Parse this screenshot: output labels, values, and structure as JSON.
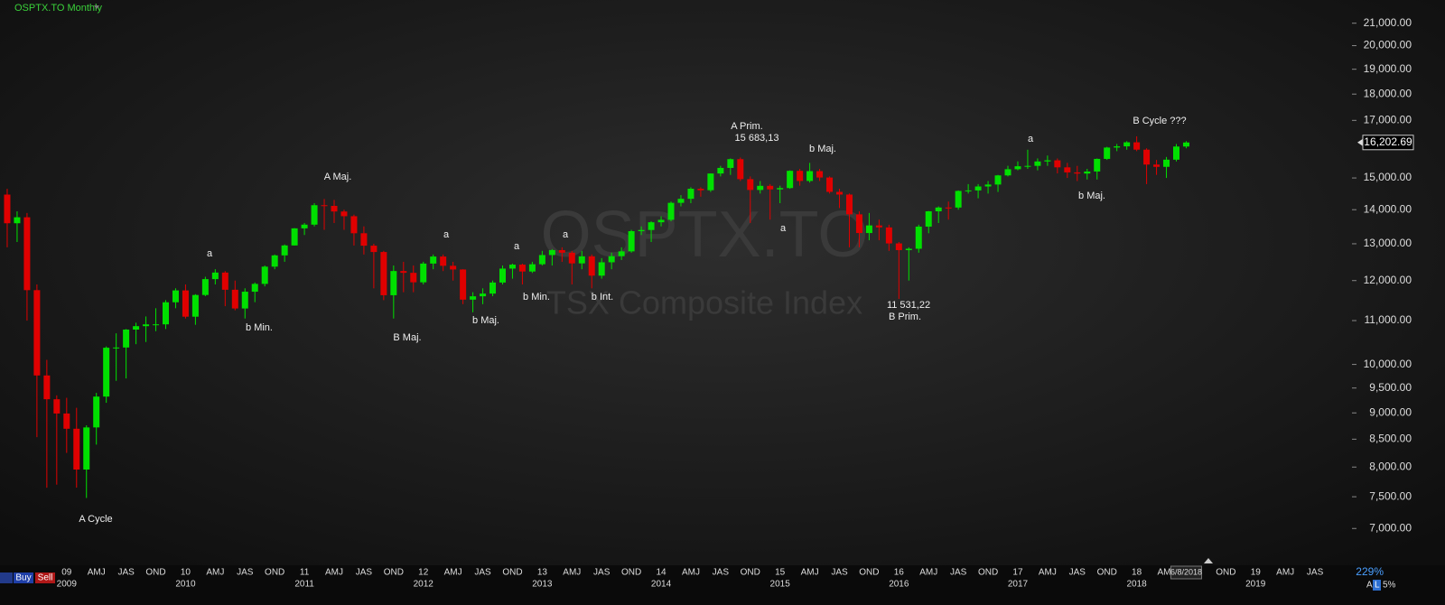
{
  "chart_data": {
    "type": "candlestick",
    "title": "OSPTX.TO Monthly",
    "watermark": "OSPTX.TO",
    "watermark_subtitle": "TSX Composite Index",
    "log_scale": true,
    "up_color": "#00e000",
    "down_color": "#e00000",
    "x": [
      "2008-07",
      "2008-08",
      "2008-09",
      "2008-10",
      "2008-11",
      "2008-12",
      "2009-01",
      "2009-02",
      "2009-03",
      "2009-04",
      "2009-05",
      "2009-06",
      "2009-07",
      "2009-08",
      "2009-09",
      "2009-10",
      "2009-11",
      "2009-12",
      "2010-01",
      "2010-02",
      "2010-03",
      "2010-04",
      "2010-05",
      "2010-06",
      "2010-07",
      "2010-08",
      "2010-09",
      "2010-10",
      "2010-11",
      "2010-12",
      "2011-01",
      "2011-02",
      "2011-03",
      "2011-04",
      "2011-05",
      "2011-06",
      "2011-07",
      "2011-08",
      "2011-09",
      "2011-10",
      "2011-11",
      "2011-12",
      "2012-01",
      "2012-02",
      "2012-03",
      "2012-04",
      "2012-05",
      "2012-06",
      "2012-07",
      "2012-08",
      "2012-09",
      "2012-10",
      "2012-11",
      "2012-12",
      "2013-01",
      "2013-02",
      "2013-03",
      "2013-04",
      "2013-05",
      "2013-06",
      "2013-07",
      "2013-08",
      "2013-09",
      "2013-10",
      "2013-11",
      "2013-12",
      "2014-01",
      "2014-02",
      "2014-03",
      "2014-04",
      "2014-05",
      "2014-06",
      "2014-07",
      "2014-08",
      "2014-09",
      "2014-10",
      "2014-11",
      "2014-12",
      "2015-01",
      "2015-02",
      "2015-03",
      "2015-04",
      "2015-05",
      "2015-06",
      "2015-07",
      "2015-08",
      "2015-09",
      "2015-10",
      "2015-11",
      "2015-12",
      "2016-01",
      "2016-02",
      "2016-03",
      "2016-04",
      "2016-05",
      "2016-06",
      "2016-07",
      "2016-08",
      "2016-09",
      "2016-10",
      "2016-11",
      "2016-12",
      "2017-01",
      "2017-02",
      "2017-03",
      "2017-04",
      "2017-05",
      "2017-06",
      "2017-07",
      "2017-08",
      "2017-09",
      "2017-10",
      "2017-11",
      "2017-12",
      "2018-01",
      "2018-02",
      "2018-03",
      "2018-04",
      "2018-05",
      "2018-06"
    ],
    "open": [
      14467,
      13593,
      13771,
      11753,
      9763,
      9271,
      8988,
      8695,
      7957,
      8720,
      9325,
      10370,
      10375,
      10787,
      10868,
      10910,
      10911,
      11447,
      11746,
      11094,
      11630,
      12038,
      12211,
      11763,
      11294,
      11713,
      11914,
      12369,
      12676,
      12953,
      13443,
      13552,
      14137,
      14116,
      13945,
      13803,
      13301,
      12946,
      12769,
      11624,
      12252,
      12204,
      11955,
      12452,
      12644,
      12392,
      12293,
      11513,
      11597,
      11665,
      11949,
      12317,
      12423,
      12239,
      12434,
      12685,
      12822,
      12750,
      12457,
      12650,
      12129,
      12487,
      12654,
      12787,
      13361,
      13395,
      13622,
      13695,
      14210,
      14335,
      14652,
      14604,
      15146,
      15331,
      15626,
      14961,
      14613,
      14745,
      14632,
      14674,
      15234,
      14902,
      15225,
      15014,
      14553,
      14468,
      13859,
      13307,
      13529,
      13470,
      13010,
      12822,
      12860,
      13494,
      13951,
      14066,
      14065,
      14583,
      14598,
      14725,
      14787,
      15083,
      15288,
      15386,
      15399,
      15548,
      15586,
      15350,
      15182,
      15144,
      15212,
      15635,
      16025,
      16067,
      16209,
      15952,
      15443,
      15367,
      15608,
      16061
    ],
    "high": [
      14650,
      13950,
      13900,
      11900,
      10100,
      9350,
      9300,
      9100,
      8760,
      9400,
      10400,
      10700,
      10800,
      10950,
      11100,
      11300,
      11500,
      11800,
      11900,
      11650,
      12100,
      12300,
      12250,
      12000,
      11800,
      11950,
      12400,
      12700,
      12980,
      13450,
      13600,
      14200,
      14329,
      14300,
      14000,
      13850,
      13500,
      13000,
      12800,
      12400,
      12500,
      12400,
      12500,
      12700,
      12700,
      12500,
      12300,
      11700,
      11800,
      12000,
      12400,
      12450,
      12450,
      12500,
      12800,
      12850,
      12900,
      12800,
      12800,
      12700,
      12600,
      12750,
      12900,
      13400,
      13500,
      13650,
      13800,
      14250,
      14450,
      14700,
      14700,
      15150,
      15400,
      15650,
      15683.13,
      15050,
      14900,
      14800,
      14750,
      15250,
      15300,
      15500,
      15300,
      15050,
      14650,
      14500,
      13950,
      13900,
      13700,
      13550,
      13050,
      12900,
      13550,
      13960,
      14100,
      14250,
      14600,
      14800,
      14800,
      14900,
      15100,
      15400,
      15550,
      15950,
      15650,
      15750,
      15650,
      15500,
      15400,
      15300,
      15650,
      16050,
      16150,
      16250,
      16421,
      16000,
      15600,
      15700,
      16150,
      16250
    ],
    "low": [
      12900,
      13050,
      11000,
      8537,
      7648,
      7700,
      8250,
      7650,
      7480,
      8400,
      9200,
      9650,
      9700,
      10450,
      10500,
      10750,
      10800,
      11300,
      11050,
      10900,
      11600,
      11900,
      11350,
      11250,
      11050,
      11450,
      11850,
      12300,
      12500,
      12950,
      13250,
      13500,
      13400,
      13600,
      13400,
      12950,
      12700,
      11800,
      11500,
      11050,
      11700,
      11700,
      11900,
      12300,
      12250,
      12000,
      11400,
      11200,
      11400,
      11600,
      11900,
      12050,
      11900,
      12200,
      12400,
      12400,
      12500,
      11900,
      12300,
      11800,
      12050,
      12300,
      12550,
      12750,
      13250,
      13050,
      13500,
      13650,
      14100,
      14200,
      14400,
      14550,
      15050,
      15100,
      14900,
      13600,
      14500,
      13700,
      14200,
      14650,
      14750,
      14850,
      14900,
      14500,
      14050,
      12900,
      12900,
      13100,
      13100,
      12800,
      11531.22,
      12000,
      12750,
      13300,
      13600,
      13700,
      14000,
      14500,
      14350,
      14500,
      14550,
      15050,
      15250,
      15300,
      15250,
      15400,
      15150,
      15000,
      14900,
      14950,
      14950,
      15600,
      15900,
      15950,
      15900,
      14800,
      15100,
      15000,
      15550,
      16000
    ],
    "close": [
      13593,
      13771,
      11753,
      9763,
      9271,
      8988,
      8695,
      7957,
      8720,
      9325,
      10370,
      10375,
      10787,
      10868,
      10910,
      10911,
      11447,
      11746,
      11094,
      11630,
      12038,
      12211,
      11763,
      11294,
      11713,
      11914,
      12369,
      12676,
      12953,
      13443,
      13552,
      14137,
      14116,
      13945,
      13803,
      13301,
      12946,
      12769,
      11624,
      12252,
      12204,
      11955,
      12452,
      12644,
      12392,
      12293,
      11513,
      11597,
      11665,
      11949,
      12317,
      12423,
      12239,
      12434,
      12685,
      12822,
      12750,
      12457,
      12650,
      12129,
      12487,
      12654,
      12787,
      13361,
      13395,
      13622,
      13695,
      14210,
      14335,
      14652,
      14604,
      15146,
      15331,
      15626,
      14961,
      14613,
      14745,
      14632,
      14674,
      15234,
      14902,
      15225,
      15014,
      14553,
      14468,
      13859,
      13307,
      13529,
      13470,
      13010,
      12822,
      12860,
      13494,
      13951,
      14066,
      14065,
      14583,
      14598,
      14725,
      14787,
      15083,
      15288,
      15386,
      15399,
      15548,
      15586,
      15350,
      15182,
      15144,
      15212,
      15635,
      16025,
      16067,
      16209,
      15952,
      15443,
      15367,
      15608,
      16061,
      16202.69
    ],
    "xlim": [
      "2008-06",
      "2019-10"
    ],
    "ylim": [
      6500,
      22000
    ],
    "yticks": [
      {
        "value": 7000,
        "label": "7,000.00"
      },
      {
        "value": 7500,
        "label": "7,500.00"
      },
      {
        "value": 8000,
        "label": "8,000.00"
      },
      {
        "value": 8500,
        "label": "8,500.00"
      },
      {
        "value": 9000,
        "label": "9,000.00"
      },
      {
        "value": 9500,
        "label": "9,500.00"
      },
      {
        "value": 10000,
        "label": "10,000.00"
      },
      {
        "value": 11000,
        "label": "11,000.00"
      },
      {
        "value": 12000,
        "label": "12,000.00"
      },
      {
        "value": 13000,
        "label": "13,000.00"
      },
      {
        "value": 14000,
        "label": "14,000.00"
      },
      {
        "value": 15000,
        "label": "15,000.00"
      },
      {
        "value": 17000,
        "label": "17,000.00"
      },
      {
        "value": 18000,
        "label": "18,000.00"
      },
      {
        "value": 19000,
        "label": "19,000.00"
      },
      {
        "value": 20000,
        "label": "20,000.00"
      },
      {
        "value": 21000,
        "label": "21,000.00"
      }
    ],
    "last_price": {
      "value": 16202.69,
      "label": "16,202.69"
    },
    "xticks": [
      {
        "value": "2009-01",
        "label": "09"
      },
      {
        "value": "2009-04",
        "label": "AMJ"
      },
      {
        "value": "2009-07",
        "label": "JAS"
      },
      {
        "value": "2009-10",
        "label": "OND"
      },
      {
        "value": "2010-01",
        "label": "10"
      },
      {
        "value": "2010-04",
        "label": "AMJ"
      },
      {
        "value": "2010-07",
        "label": "JAS"
      },
      {
        "value": "2010-10",
        "label": "OND"
      },
      {
        "value": "2011-01",
        "label": "11"
      },
      {
        "value": "2011-04",
        "label": "AMJ"
      },
      {
        "value": "2011-07",
        "label": "JAS"
      },
      {
        "value": "2011-10",
        "label": "OND"
      },
      {
        "value": "2012-01",
        "label": "12"
      },
      {
        "value": "2012-04",
        "label": "AMJ"
      },
      {
        "value": "2012-07",
        "label": "JAS"
      },
      {
        "value": "2012-10",
        "label": "OND"
      },
      {
        "value": "2013-01",
        "label": "13"
      },
      {
        "value": "2013-04",
        "label": "AMJ"
      },
      {
        "value": "2013-07",
        "label": "JAS"
      },
      {
        "value": "2013-10",
        "label": "OND"
      },
      {
        "value": "2014-01",
        "label": "14"
      },
      {
        "value": "2014-04",
        "label": "AMJ"
      },
      {
        "value": "2014-07",
        "label": "JAS"
      },
      {
        "value": "2014-10",
        "label": "OND"
      },
      {
        "value": "2015-01",
        "label": "15"
      },
      {
        "value": "2015-04",
        "label": "AMJ"
      },
      {
        "value": "2015-07",
        "label": "JAS"
      },
      {
        "value": "2015-10",
        "label": "OND"
      },
      {
        "value": "2016-01",
        "label": "16"
      },
      {
        "value": "2016-04",
        "label": "AMJ"
      },
      {
        "value": "2016-07",
        "label": "JAS"
      },
      {
        "value": "2016-10",
        "label": "OND"
      },
      {
        "value": "2017-01",
        "label": "17"
      },
      {
        "value": "2017-04",
        "label": "AMJ"
      },
      {
        "value": "2017-07",
        "label": "JAS"
      },
      {
        "value": "2017-10",
        "label": "OND"
      },
      {
        "value": "2018-01",
        "label": "18"
      },
      {
        "value": "2018-04",
        "label": "AMJ"
      },
      {
        "value": "2018-10",
        "label": "OND"
      },
      {
        "value": "2019-01",
        "label": "19"
      },
      {
        "value": "2019-04",
        "label": "AMJ"
      },
      {
        "value": "2019-07",
        "label": "JAS"
      }
    ],
    "year_ticks": [
      {
        "value": "2009-01",
        "label": "2009"
      },
      {
        "value": "2010-01",
        "label": "2010"
      },
      {
        "value": "2011-01",
        "label": "2011"
      },
      {
        "value": "2012-01",
        "label": "2012"
      },
      {
        "value": "2013-01",
        "label": "2013"
      },
      {
        "value": "2014-01",
        "label": "2014"
      },
      {
        "value": "2015-01",
        "label": "2015"
      },
      {
        "value": "2016-01",
        "label": "2016"
      },
      {
        "value": "2017-01",
        "label": "2017"
      },
      {
        "value": "2018-01",
        "label": "2018"
      },
      {
        "value": "2019-01",
        "label": "2019"
      }
    ],
    "cursor_date": {
      "value": "2018-06",
      "label": "6/8/2018"
    },
    "annotations": [
      "A Cycle",
      "b Min.",
      "a",
      "A Maj.",
      "B Maj.",
      "a",
      "b Maj.",
      "a",
      "b Min.",
      "a",
      "b Int.",
      "A Prim.",
      "15 683,13",
      "a",
      "b Maj.",
      "11 531,22",
      "B Prim.",
      "a",
      "b Maj.",
      "B Cycle ???"
    ]
  },
  "toolbar": {
    "buy": "Buy",
    "sell": "Sell",
    "zoom": "229%",
    "flags": [
      "A",
      "L",
      "5%"
    ]
  }
}
